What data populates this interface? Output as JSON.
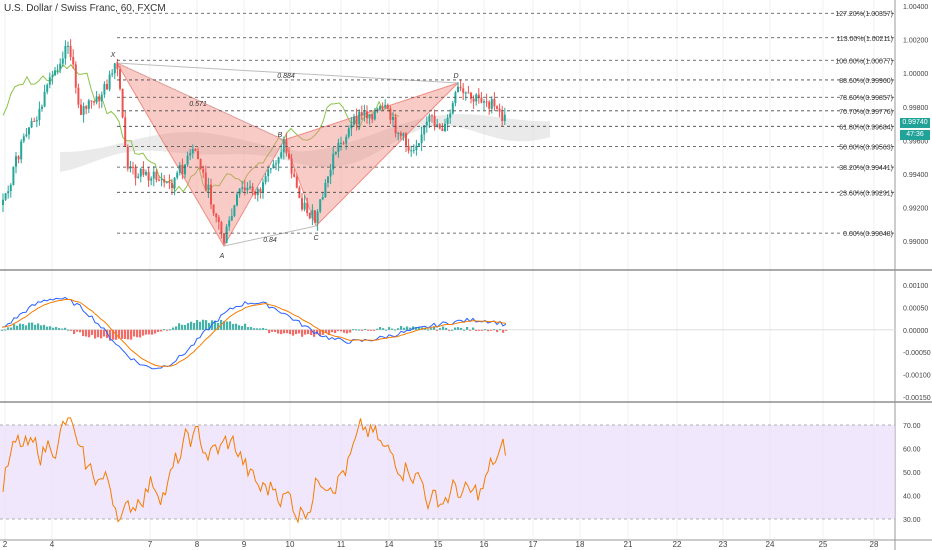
{
  "title": "U.S. Dollar / Swiss Franc, 60, FXCM",
  "price_badge": {
    "price": "0.99740",
    "countdown": "47:36",
    "color": "#22a39a"
  },
  "colors": {
    "up": "#26a69a",
    "down": "#ef5350",
    "pattern": "#f28b82",
    "macd": "#2962ff",
    "signal": "#f57c00",
    "rsi": "#f57c00",
    "rsi_band": "#e9ddfb",
    "chikou": "#8bc34a",
    "cloud": "#d9d9d9",
    "candle_up": "#ffffff",
    "candle_down": "#000000"
  },
  "chart_data": [
    {
      "type": "candlestick",
      "panel": "price",
      "yrange": [
        0.989,
        1.004
      ],
      "ytick_labels": [
        "1.00400",
        "1.00200",
        "1.00000",
        "0.99800",
        "0.99600",
        "0.99400",
        "0.99200",
        "0.99000"
      ],
      "xtick_labels": [
        "2",
        "4",
        "7",
        "8",
        "9",
        "10",
        "11",
        "14",
        "15",
        "16",
        "17",
        "18",
        "21",
        "22",
        "23",
        "24",
        "25",
        "28"
      ],
      "fib_levels": [
        {
          "label": "127.20%(1.00357)",
          "value": 1.00357
        },
        {
          "label": "113.00%(1.00211)",
          "value": 1.00211
        },
        {
          "label": "100.00%(1.00077)",
          "value": 1.00077
        },
        {
          "label": "88.60%(0.99960)",
          "value": 0.9996
        },
        {
          "label": "78.60%(0.99857)",
          "value": 0.99857
        },
        {
          "label": "70.70%(0.99776)",
          "value": 0.99776
        },
        {
          "label": "61.80%(0.99684)",
          "value": 0.99684
        },
        {
          "label": "50.00%(0.99563)",
          "value": 0.99563
        },
        {
          "label": "38.20%(0.99441)",
          "value": 0.99441
        },
        {
          "label": "23.60%(0.99291)",
          "value": 0.99291
        },
        {
          "label": "0.00%(0.99048)",
          "value": 0.99048
        }
      ],
      "pattern_points": [
        {
          "label": "X",
          "x": 4.3,
          "y": 1.0008
        },
        {
          "label": "A",
          "x": 8.6,
          "y": 0.9906
        },
        {
          "label": "B",
          "x": 9.7,
          "y": 0.9968
        },
        {
          "label": "C",
          "x": 10.4,
          "y": 0.9916
        },
        {
          "label": "D",
          "x": 15.35,
          "y": 0.99965
        }
      ],
      "pattern_ratios": [
        {
          "label": "0.884",
          "x": 9.8,
          "y": 1.0003
        },
        {
          "label": "0.571",
          "x": 6.4,
          "y": 0.9984
        },
        {
          "label": "0.84",
          "x": 9.5,
          "y": 0.9903
        }
      ],
      "last_price": 0.9974,
      "candles_described": "hourly OHLC from day 2 to day 16.4"
    },
    {
      "type": "histogram+line",
      "panel": "macd",
      "yrange": [
        -0.0016,
        0.0012
      ],
      "ytick_labels": [
        "0.00100",
        "0.00050",
        "0.00000",
        "-0.00050",
        "-0.00100",
        "-0.00150"
      ],
      "series": [
        {
          "name": "",
          "values": []
        }
      ]
    },
    {
      "type": "line",
      "panel": "rsi",
      "yrange": [
        25,
        75
      ],
      "ytick_labels": [
        "70.00",
        "60.00",
        "50.00",
        "40.00",
        "30.00"
      ],
      "band": [
        30,
        70
      ]
    }
  ]
}
